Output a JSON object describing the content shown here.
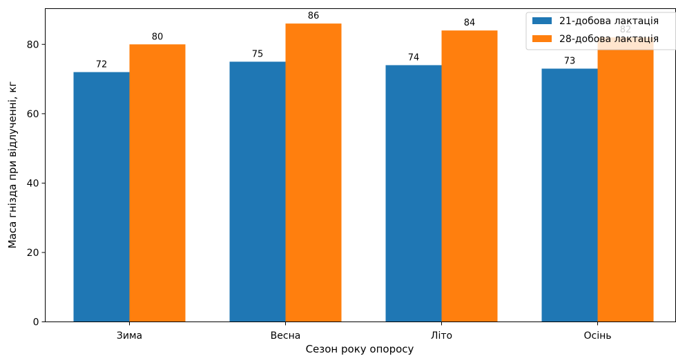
{
  "chart_data": {
    "type": "bar",
    "categories": [
      "Зима",
      "Весна",
      "Літо",
      "Осінь"
    ],
    "series": [
      {
        "name": "21-добова лактація",
        "values": [
          72,
          75,
          74,
          73
        ],
        "color": "#1f77b4"
      },
      {
        "name": "28-добова лактація",
        "values": [
          80,
          86,
          84,
          82
        ],
        "color": "#ff7f0e"
      }
    ],
    "xlabel": "Сезон року опоросу",
    "ylabel": "Маса гнізда при відлученні, кг",
    "ylim": [
      0,
      90.3
    ],
    "yticks": [
      0,
      20,
      40,
      60,
      80
    ],
    "legend": "top-right",
    "grid": false
  }
}
